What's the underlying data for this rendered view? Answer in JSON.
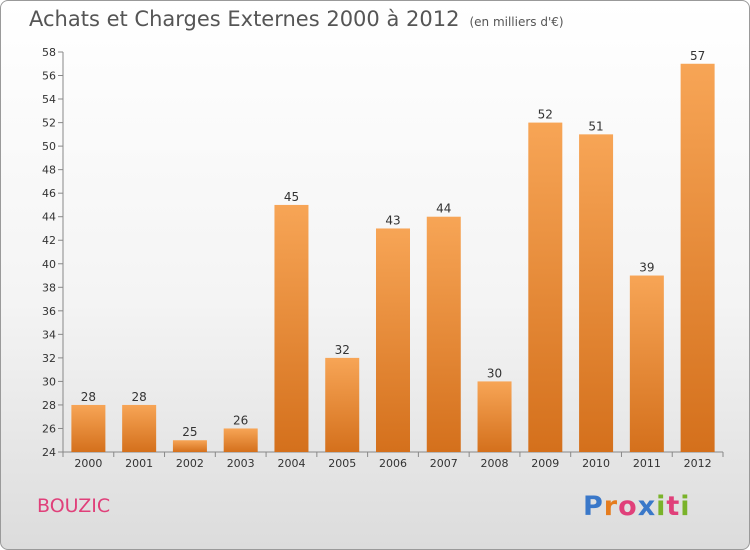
{
  "header": {
    "title": "Achats et Charges Externes 2000 à 2012",
    "unit": "(en milliers d'€)"
  },
  "footer": {
    "commune": "BOUZIC",
    "logo": [
      "P",
      "r",
      "o",
      "x",
      "i",
      "t",
      "i"
    ]
  },
  "colors": {
    "bar_top": "#f7a556",
    "bar_bottom": "#d4701c",
    "commune": "#e0407a",
    "logo": [
      "#3a78c9",
      "#e57c1e",
      "#e0407a",
      "#3a78c9",
      "#7ab32a",
      "#e0407a",
      "#7ab32a"
    ]
  },
  "chart_data": {
    "type": "bar",
    "categories": [
      "2000",
      "2001",
      "2002",
      "2003",
      "2004",
      "2005",
      "2006",
      "2007",
      "2008",
      "2009",
      "2010",
      "2011",
      "2012"
    ],
    "values": [
      28,
      28,
      25,
      26,
      45,
      32,
      43,
      44,
      30,
      52,
      51,
      39,
      57
    ],
    "ylim": [
      24,
      58
    ],
    "yticks": [
      24,
      26,
      28,
      30,
      32,
      34,
      36,
      38,
      40,
      42,
      44,
      46,
      48,
      50,
      52,
      54,
      56,
      58
    ],
    "grid": false,
    "data_labels": true
  }
}
